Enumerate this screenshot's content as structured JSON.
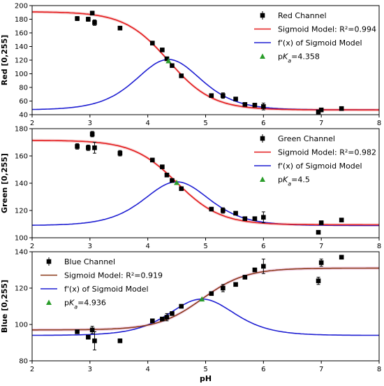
{
  "chart_data": [
    {
      "type": "scatter",
      "ylabel": "Red [0,255]",
      "xlabel": "",
      "xlim": [
        2,
        8
      ],
      "ylim": [
        40,
        200
      ],
      "yticks": [
        40,
        60,
        80,
        100,
        120,
        140,
        160,
        180,
        200
      ],
      "xticks": [
        2,
        3,
        4,
        5,
        6,
        7,
        8
      ],
      "legend_position": "top-right",
      "legend": [
        "Red Channel",
        "Sigmoid Model: R²=0.994",
        "f'(x) of Sigmoid Model",
        "pKa=4.358"
      ],
      "colors": {
        "model": "#e41a1c",
        "derivative": "#1f1fd2",
        "pka": "#2a9d2a",
        "band": "#f6d0d0"
      },
      "model": {
        "top": 191,
        "bottom": 47,
        "pka": 4.358,
        "width": 0.38,
        "ascending": false
      },
      "derivative": {
        "base": 47,
        "peak": 121
      },
      "pka_value": 4.358,
      "points": [
        {
          "x": 2.78,
          "y": 181,
          "err": 3
        },
        {
          "x": 2.97,
          "y": 180,
          "err": 3
        },
        {
          "x": 3.04,
          "y": 189,
          "err": 2
        },
        {
          "x": 3.08,
          "y": 175,
          "err": 4
        },
        {
          "x": 3.52,
          "y": 167,
          "err": 2
        },
        {
          "x": 4.08,
          "y": 145,
          "err": 2
        },
        {
          "x": 4.25,
          "y": 135,
          "err": 2
        },
        {
          "x": 4.33,
          "y": 122,
          "err": 2
        },
        {
          "x": 4.42,
          "y": 112,
          "err": 2
        },
        {
          "x": 4.58,
          "y": 97,
          "err": 2
        },
        {
          "x": 5.1,
          "y": 68,
          "err": 2
        },
        {
          "x": 5.3,
          "y": 68,
          "err": 4
        },
        {
          "x": 5.52,
          "y": 63,
          "err": 2
        },
        {
          "x": 5.68,
          "y": 55,
          "err": 2
        },
        {
          "x": 5.85,
          "y": 54,
          "err": 2
        },
        {
          "x": 6.0,
          "y": 52,
          "err": 5
        },
        {
          "x": 6.95,
          "y": 44,
          "err": 2
        },
        {
          "x": 7.0,
          "y": 47,
          "err": 2
        },
        {
          "x": 7.35,
          "y": 49,
          "err": 2
        }
      ]
    },
    {
      "type": "scatter",
      "ylabel": "Green [0,255]",
      "xlabel": "",
      "xlim": [
        2,
        8
      ],
      "ylim": [
        100,
        180
      ],
      "yticks": [
        100,
        120,
        140,
        160,
        180
      ],
      "xticks": [
        2,
        3,
        4,
        5,
        6,
        7,
        8
      ],
      "legend_position": "top-right",
      "legend": [
        "Green Channel",
        "Sigmoid Model: R²=0.982",
        "f'(x) of Sigmoid Model",
        "pKa=4.5"
      ],
      "colors": {
        "model": "#e41a1c",
        "derivative": "#1f1fd2",
        "pka": "#2a9d2a",
        "band": "#f6d0d0"
      },
      "model": {
        "top": 171.5,
        "bottom": 109.5,
        "pka": 4.5,
        "width": 0.38,
        "ascending": false
      },
      "derivative": {
        "base": 109,
        "peak": 141
      },
      "pka_value": 4.5,
      "points": [
        {
          "x": 2.78,
          "y": 167,
          "err": 2
        },
        {
          "x": 2.97,
          "y": 166,
          "err": 2
        },
        {
          "x": 3.04,
          "y": 176,
          "err": 2
        },
        {
          "x": 3.08,
          "y": 166,
          "err": 4
        },
        {
          "x": 3.52,
          "y": 162,
          "err": 2
        },
        {
          "x": 4.08,
          "y": 157,
          "err": 1
        },
        {
          "x": 4.25,
          "y": 152,
          "err": 1
        },
        {
          "x": 4.33,
          "y": 146,
          "err": 1
        },
        {
          "x": 4.42,
          "y": 142,
          "err": 1
        },
        {
          "x": 4.58,
          "y": 136,
          "err": 1
        },
        {
          "x": 5.1,
          "y": 121,
          "err": 1
        },
        {
          "x": 5.3,
          "y": 120,
          "err": 2
        },
        {
          "x": 5.52,
          "y": 118,
          "err": 1
        },
        {
          "x": 5.68,
          "y": 114,
          "err": 1
        },
        {
          "x": 5.85,
          "y": 114,
          "err": 1
        },
        {
          "x": 6.0,
          "y": 115,
          "err": 4
        },
        {
          "x": 6.95,
          "y": 104,
          "err": 1
        },
        {
          "x": 7.0,
          "y": 111,
          "err": 1
        },
        {
          "x": 7.35,
          "y": 113,
          "err": 1
        }
      ]
    },
    {
      "type": "scatter",
      "ylabel": "Blue [0,255]",
      "xlabel": "pH",
      "xlim": [
        2,
        8
      ],
      "ylim": [
        80,
        140
      ],
      "yticks": [
        80,
        100,
        120,
        140
      ],
      "xticks": [
        2,
        3,
        4,
        5,
        6,
        7,
        8
      ],
      "legend_position": "top-left",
      "legend": [
        "Blue Channel",
        "Sigmoid Model: R²=0.919",
        "f'(x) of Sigmoid Model",
        "pKa=4.936"
      ],
      "colors": {
        "model": "#8b3a1a",
        "derivative": "#1f1fd2",
        "pka": "#2a9d2a",
        "band": "#f2cfe6"
      },
      "model": {
        "top": 131,
        "bottom": 97,
        "pka": 4.936,
        "width": 0.38,
        "ascending": true
      },
      "derivative": {
        "base": 94,
        "peak": 114
      },
      "pka_value": 4.936,
      "points": [
        {
          "x": 2.78,
          "y": 96,
          "err": 1
        },
        {
          "x": 2.97,
          "y": 93,
          "err": 1
        },
        {
          "x": 3.04,
          "y": 97,
          "err": 2
        },
        {
          "x": 3.08,
          "y": 91,
          "err": 5
        },
        {
          "x": 3.52,
          "y": 91,
          "err": 1
        },
        {
          "x": 4.08,
          "y": 102,
          "err": 1
        },
        {
          "x": 4.25,
          "y": 103,
          "err": 1
        },
        {
          "x": 4.33,
          "y": 104,
          "err": 2
        },
        {
          "x": 4.42,
          "y": 106,
          "err": 1
        },
        {
          "x": 4.58,
          "y": 110,
          "err": 1
        },
        {
          "x": 5.1,
          "y": 117,
          "err": 1
        },
        {
          "x": 5.3,
          "y": 120,
          "err": 2
        },
        {
          "x": 5.52,
          "y": 122,
          "err": 1
        },
        {
          "x": 5.68,
          "y": 126,
          "err": 1
        },
        {
          "x": 5.85,
          "y": 130,
          "err": 1
        },
        {
          "x": 6.0,
          "y": 132,
          "err": 4
        },
        {
          "x": 6.95,
          "y": 124,
          "err": 2
        },
        {
          "x": 7.0,
          "y": 134,
          "err": 2
        },
        {
          "x": 7.35,
          "y": 137,
          "err": 1
        }
      ]
    }
  ]
}
